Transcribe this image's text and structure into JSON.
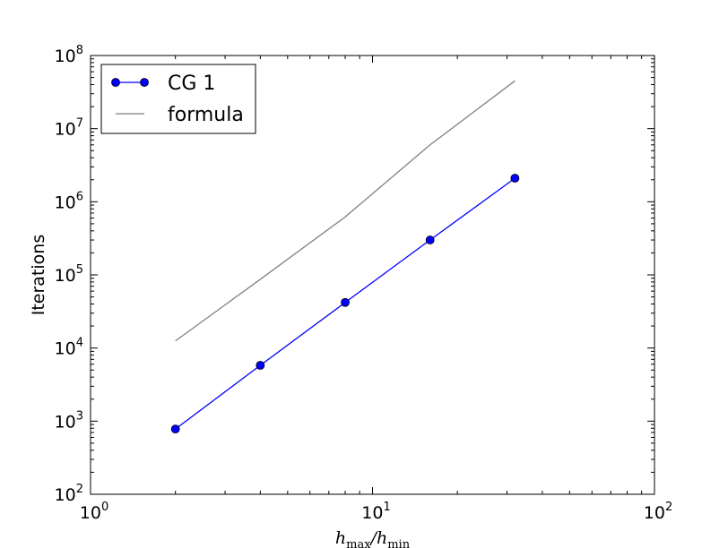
{
  "chart_data": {
    "type": "line",
    "scale": {
      "x": "log",
      "y": "log"
    },
    "xlim": [
      1,
      100
    ],
    "ylim": [
      100,
      100000000
    ],
    "x_ticks": [
      {
        "base": "10",
        "exp": "0",
        "value": 1
      },
      {
        "base": "10",
        "exp": "1",
        "value": 10
      },
      {
        "base": "10",
        "exp": "2",
        "value": 100
      }
    ],
    "y_ticks": [
      {
        "base": "10",
        "exp": "2",
        "value": 100
      },
      {
        "base": "10",
        "exp": "3",
        "value": 1000
      },
      {
        "base": "10",
        "exp": "4",
        "value": 10000
      },
      {
        "base": "10",
        "exp": "5",
        "value": 100000
      },
      {
        "base": "10",
        "exp": "6",
        "value": 1000000
      },
      {
        "base": "10",
        "exp": "7",
        "value": 10000000
      },
      {
        "base": "10",
        "exp": "8",
        "value": 100000000
      }
    ],
    "xlabel": {
      "h1": "h",
      "sub1": "max",
      "slash": "/",
      "h2": "h",
      "sub2": "min"
    },
    "ylabel": "Iterations",
    "grid": false,
    "legend_position": "top-left",
    "series": [
      {
        "name": "CG 1",
        "color": "#0000ff",
        "marker": "circle",
        "x": [
          2,
          4,
          8,
          16,
          32
        ],
        "y": [
          780,
          5800,
          42000,
          300000,
          2100000
        ]
      },
      {
        "name": "formula",
        "color": "#808080",
        "marker": "none",
        "x": [
          2,
          4,
          8,
          16,
          32
        ],
        "y": [
          12500,
          87000,
          620000,
          6000000,
          45000000
        ]
      }
    ]
  }
}
